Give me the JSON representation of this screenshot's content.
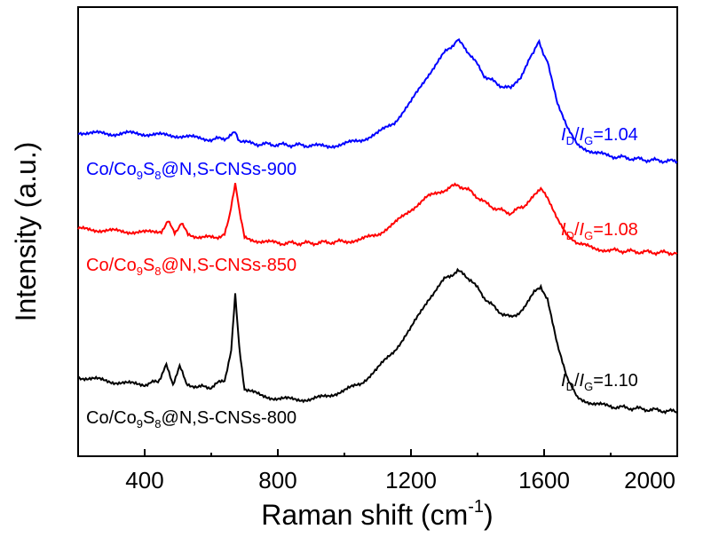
{
  "chart_data": {
    "type": "line",
    "title": "",
    "xlabel": "Raman shift (cm",
    "xlabel_sup": "-1",
    "xlabel_close": ")",
    "ylabel": "Intensity (a.u.)",
    "xlim": [
      200,
      2000
    ],
    "xticks": [
      400,
      800,
      1200,
      1600,
      2000
    ],
    "y_units": "arbitrary (offset traces)",
    "grid": false,
    "series": [
      {
        "name": "Co/Co9S8@N,S-CNSs-900",
        "label_parts": [
          "Co/Co",
          "9",
          "S",
          "8",
          "@N,S-CNSs-900"
        ],
        "ratio_value": "=1.04",
        "color": "#0000ff",
        "points": [
          [
            200,
            149
          ],
          [
            250,
            150
          ],
          [
            300,
            151
          ],
          [
            350,
            150
          ],
          [
            400,
            151
          ],
          [
            450,
            152
          ],
          [
            500,
            153
          ],
          [
            550,
            155
          ],
          [
            600,
            157
          ],
          [
            640,
            156
          ],
          [
            660,
            152
          ],
          [
            672,
            150
          ],
          [
            685,
            158
          ],
          [
            720,
            162
          ],
          [
            800,
            163
          ],
          [
            900,
            164
          ],
          [
            950,
            165
          ],
          [
            1000,
            162
          ],
          [
            1050,
            158
          ],
          [
            1100,
            150
          ],
          [
            1150,
            138
          ],
          [
            1200,
            115
          ],
          [
            1250,
            85
          ],
          [
            1300,
            60
          ],
          [
            1340,
            45
          ],
          [
            1380,
            62
          ],
          [
            1420,
            85
          ],
          [
            1460,
            95
          ],
          [
            1500,
            100
          ],
          [
            1530,
            88
          ],
          [
            1560,
            62
          ],
          [
            1585,
            48
          ],
          [
            1610,
            70
          ],
          [
            1640,
            118
          ],
          [
            1670,
            145
          ],
          [
            1700,
            163
          ],
          [
            1750,
            172
          ],
          [
            1800,
            176
          ],
          [
            1900,
            180
          ],
          [
            2000,
            182
          ]
        ]
      },
      {
        "name": "Co/Co9S8@N,S-CNSs-850",
        "label_parts": [
          "Co/Co",
          "9",
          "S",
          "8",
          "@N,S-CNSs-850"
        ],
        "ratio_value": "=1.08",
        "color": "#ff0000",
        "points": [
          [
            200,
            258
          ],
          [
            250,
            259
          ],
          [
            300,
            260
          ],
          [
            350,
            261
          ],
          [
            400,
            262
          ],
          [
            450,
            260
          ],
          [
            470,
            250
          ],
          [
            490,
            262
          ],
          [
            510,
            251
          ],
          [
            530,
            265
          ],
          [
            600,
            268
          ],
          [
            640,
            265
          ],
          [
            655,
            245
          ],
          [
            672,
            205
          ],
          [
            685,
            240
          ],
          [
            700,
            268
          ],
          [
            750,
            272
          ],
          [
            800,
            274
          ],
          [
            900,
            274
          ],
          [
            1000,
            272
          ],
          [
            1050,
            270
          ],
          [
            1100,
            264
          ],
          [
            1150,
            252
          ],
          [
            1200,
            236
          ],
          [
            1250,
            222
          ],
          [
            1300,
            214
          ],
          [
            1340,
            208
          ],
          [
            1380,
            216
          ],
          [
            1420,
            228
          ],
          [
            1460,
            236
          ],
          [
            1500,
            240
          ],
          [
            1540,
            232
          ],
          [
            1570,
            218
          ],
          [
            1590,
            214
          ],
          [
            1610,
            222
          ],
          [
            1640,
            245
          ],
          [
            1670,
            264
          ],
          [
            1700,
            274
          ],
          [
            1750,
            280
          ],
          [
            1800,
            282
          ],
          [
            1900,
            284
          ],
          [
            2000,
            285
          ]
        ]
      },
      {
        "name": "Co/Co9S8@N,S-CNSs-800",
        "label_parts": [
          "Co/Co",
          "9",
          "S",
          "8",
          "@N,S-CNSs-800"
        ],
        "ratio_value": "=1.10",
        "color": "#000000",
        "points": [
          [
            200,
            425
          ],
          [
            250,
            427
          ],
          [
            300,
            430
          ],
          [
            350,
            432
          ],
          [
            400,
            433
          ],
          [
            440,
            430
          ],
          [
            465,
            412
          ],
          [
            485,
            432
          ],
          [
            505,
            413
          ],
          [
            525,
            432
          ],
          [
            560,
            436
          ],
          [
            600,
            436
          ],
          [
            640,
            428
          ],
          [
            660,
            395
          ],
          [
            672,
            333
          ],
          [
            684,
            390
          ],
          [
            700,
            438
          ],
          [
            750,
            446
          ],
          [
            800,
            449
          ],
          [
            850,
            450
          ],
          [
            900,
            450
          ],
          [
            950,
            446
          ],
          [
            1000,
            440
          ],
          [
            1050,
            432
          ],
          [
            1100,
            415
          ],
          [
            1150,
            395
          ],
          [
            1200,
            370
          ],
          [
            1250,
            338
          ],
          [
            1300,
            315
          ],
          [
            1340,
            305
          ],
          [
            1380,
            315
          ],
          [
            1420,
            335
          ],
          [
            1460,
            350
          ],
          [
            1500,
            358
          ],
          [
            1540,
            348
          ],
          [
            1570,
            330
          ],
          [
            1590,
            322
          ],
          [
            1610,
            338
          ],
          [
            1640,
            390
          ],
          [
            1670,
            428
          ],
          [
            1700,
            448
          ],
          [
            1750,
            455
          ],
          [
            1800,
            458
          ],
          [
            1900,
            461
          ],
          [
            2000,
            464
          ]
        ]
      }
    ]
  },
  "ratio_label": {
    "i_letter": "I",
    "d_sub": "D",
    "slash": "/",
    "g_sub": "G"
  }
}
